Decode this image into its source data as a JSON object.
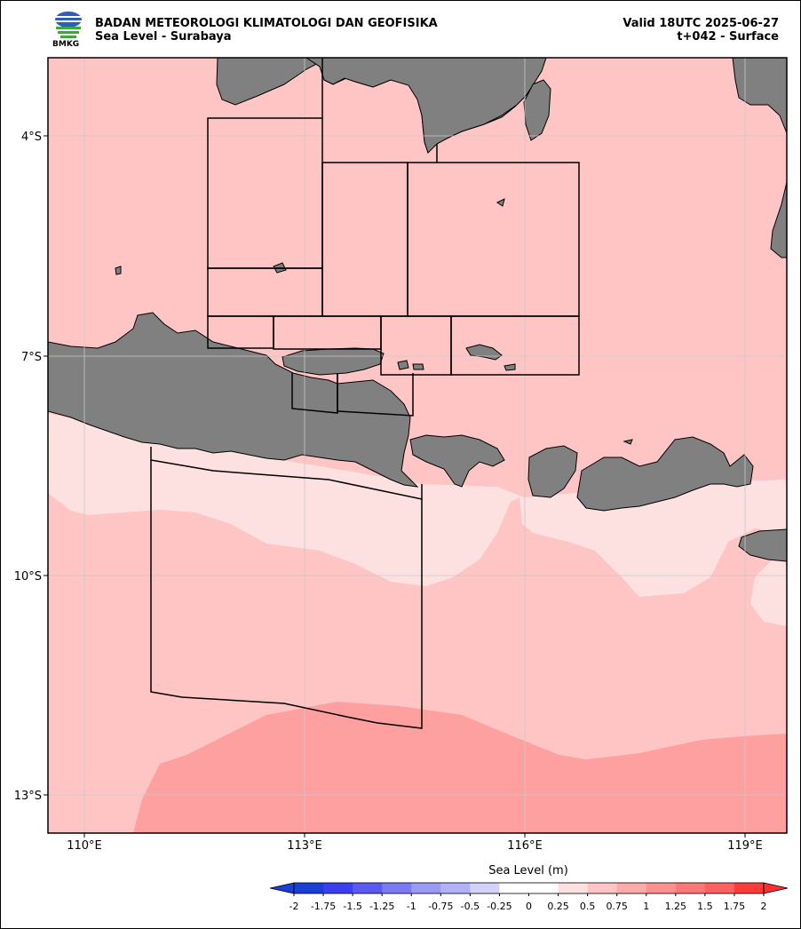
{
  "header": {
    "agency": "BADAN METEOROLOGI KLIMATOLOGI DAN GEOFISIKA",
    "subtitle": "Sea Level - Surabaya",
    "valid": "Valid 18UTC 2025-06-27",
    "lead": "t+042 - Surface",
    "logo_text": "BMKG"
  },
  "map": {
    "lon_ticks": [
      "110°E",
      "113°E",
      "116°E",
      "119°E"
    ],
    "lat_ticks": [
      "4°S",
      "7°S",
      "10°S",
      "13°S"
    ],
    "land_color": "#808080",
    "grid": true
  },
  "colorbar": {
    "label": "Sea Level (m)",
    "ticks": [
      "-2",
      "-1.75",
      "-1.5",
      "-1.25",
      "-1",
      "-0.75",
      "-0.5",
      "-0.25",
      "0",
      "0.25",
      "0.5",
      "0.75",
      "1",
      "1.25",
      "1.5",
      "1.75",
      "2"
    ],
    "colors": [
      "#1a3fd6",
      "#3b3ff0",
      "#5a5af2",
      "#7a7af4",
      "#9a9af6",
      "#b2b2f8",
      "#d2d2fb",
      "#ffffff",
      "#ffffff",
      "#fde0e0",
      "#ffc4c4",
      "#ffaaaa",
      "#ff9090",
      "#ff7878",
      "#ff6060",
      "#ff4848",
      "#ff3030"
    ],
    "under_color": "#1a3fd6",
    "over_color": "#ff3030"
  }
}
